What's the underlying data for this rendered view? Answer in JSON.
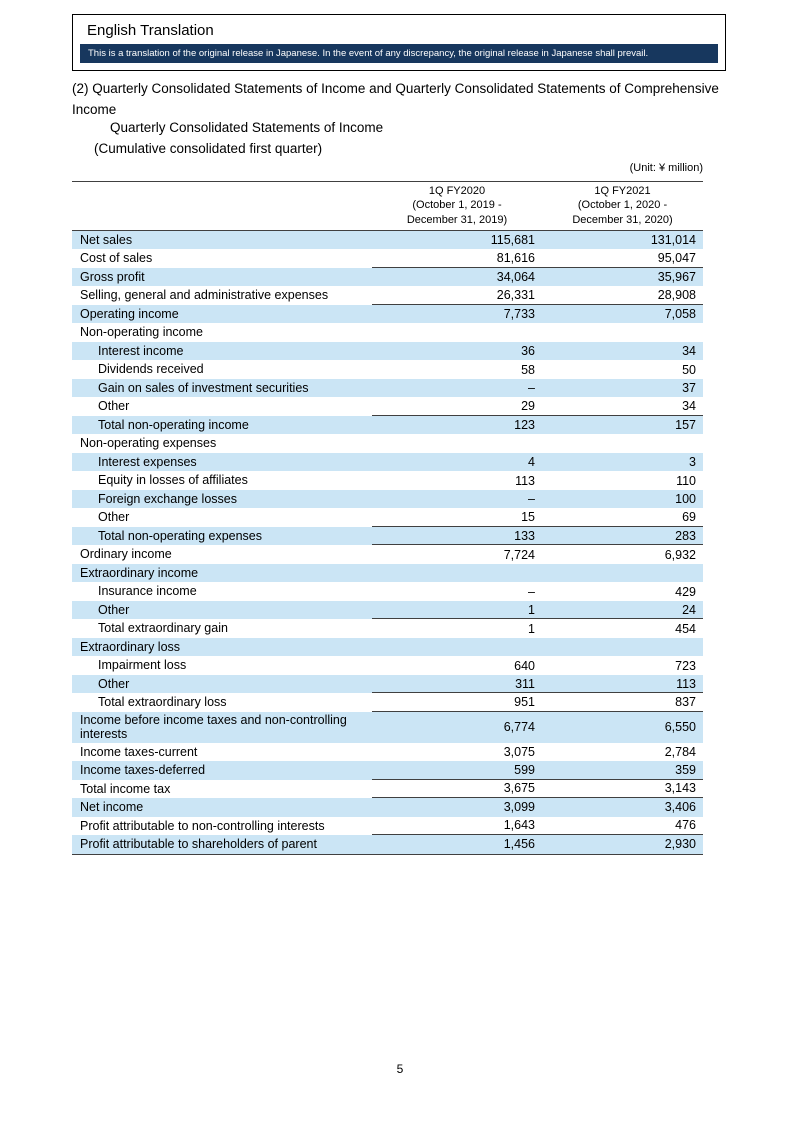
{
  "header_box": {
    "title": "English Translation",
    "note": "This is a translation of the original release in Japanese. In the event of any discrepancy, the original release in Japanese shall prevail."
  },
  "intro": {
    "section_heading": "(2) Quarterly Consolidated Statements of Income and Quarterly Consolidated Statements of Comprehensive Income",
    "statement_title": "Quarterly Consolidated Statements of Income",
    "statement_scope": "(Cumulative consolidated first quarter)",
    "unit_label": "(Unit: ¥ million)"
  },
  "table": {
    "columns": {
      "col1": {
        "line1": "1Q FY2020",
        "line2": "(October 1, 2019 -",
        "line3": "December 31, 2019)"
      },
      "col2": {
        "line1": "1Q FY2021",
        "line2": "(October 1, 2020 -",
        "line3": "December 31, 2020)"
      }
    },
    "rows": [
      {
        "label": "Net sales",
        "indent": 0,
        "v1": "115,681",
        "v2": "131,014",
        "sumline": false
      },
      {
        "label": "Cost of sales",
        "indent": 0,
        "v1": "81,616",
        "v2": "95,047",
        "sumline": true
      },
      {
        "label": "Gross profit",
        "indent": 0,
        "v1": "34,064",
        "v2": "35,967",
        "sumline": false
      },
      {
        "label": "Selling, general and administrative expenses",
        "indent": 0,
        "v1": "26,331",
        "v2": "28,908",
        "sumline": true
      },
      {
        "label": "Operating income",
        "indent": 0,
        "v1": "7,733",
        "v2": "7,058",
        "sumline": false
      },
      {
        "label": "Non-operating income",
        "indent": 0,
        "v1": "",
        "v2": "",
        "sumline": false
      },
      {
        "label": "Interest income",
        "indent": 1,
        "v1": "36",
        "v2": "34",
        "sumline": false
      },
      {
        "label": "Dividends received",
        "indent": 1,
        "v1": "58",
        "v2": "50",
        "sumline": false
      },
      {
        "label": "Gain on sales of investment securities",
        "indent": 1,
        "v1": "–",
        "v2": "37",
        "sumline": false
      },
      {
        "label": "Other",
        "indent": 1,
        "v1": "29",
        "v2": "34",
        "sumline": true
      },
      {
        "label": "Total non-operating income",
        "indent": 1,
        "v1": "123",
        "v2": "157",
        "sumline": false
      },
      {
        "label": "Non-operating expenses",
        "indent": 0,
        "v1": "",
        "v2": "",
        "sumline": false
      },
      {
        "label": "Interest expenses",
        "indent": 1,
        "v1": "4",
        "v2": "3",
        "sumline": false
      },
      {
        "label": "Equity in losses of affiliates",
        "indent": 1,
        "v1": "113",
        "v2": "110",
        "sumline": false
      },
      {
        "label": "Foreign exchange losses",
        "indent": 1,
        "v1": "–",
        "v2": "100",
        "sumline": false
      },
      {
        "label": "Other",
        "indent": 1,
        "v1": "15",
        "v2": "69",
        "sumline": true
      },
      {
        "label": "Total non-operating expenses",
        "indent": 1,
        "v1": "133",
        "v2": "283",
        "sumline": true
      },
      {
        "label": "Ordinary income",
        "indent": 0,
        "v1": "7,724",
        "v2": "6,932",
        "sumline": false
      },
      {
        "label": "Extraordinary income",
        "indent": 0,
        "v1": "",
        "v2": "",
        "sumline": false
      },
      {
        "label": "Insurance income",
        "indent": 1,
        "v1": "–",
        "v2": "429",
        "sumline": false
      },
      {
        "label": "Other",
        "indent": 1,
        "v1": "1",
        "v2": "24",
        "sumline": true
      },
      {
        "label": "Total extraordinary gain",
        "indent": 1,
        "v1": "1",
        "v2": "454",
        "sumline": false
      },
      {
        "label": "Extraordinary loss",
        "indent": 0,
        "v1": "",
        "v2": "",
        "sumline": false
      },
      {
        "label": "Impairment loss",
        "indent": 1,
        "v1": "640",
        "v2": "723",
        "sumline": false
      },
      {
        "label": "Other",
        "indent": 1,
        "v1": "311",
        "v2": "113",
        "sumline": true
      },
      {
        "label": "Total extraordinary loss",
        "indent": 1,
        "v1": "951",
        "v2": "837",
        "sumline": true
      },
      {
        "label": "Income before income taxes and non-controlling interests",
        "indent": 0,
        "v1": "6,774",
        "v2": "6,550",
        "sumline": false
      },
      {
        "label": "Income taxes-current",
        "indent": 0,
        "v1": "3,075",
        "v2": "2,784",
        "sumline": false
      },
      {
        "label": "Income taxes-deferred",
        "indent": 0,
        "v1": "599",
        "v2": "359",
        "sumline": true
      },
      {
        "label": "Total income tax",
        "indent": 0,
        "v1": "3,675",
        "v2": "3,143",
        "sumline": true
      },
      {
        "label": "Net income",
        "indent": 0,
        "v1": "3,099",
        "v2": "3,406",
        "sumline": false
      },
      {
        "label": "Profit attributable to non-controlling interests",
        "indent": 0,
        "v1": "1,643",
        "v2": "476",
        "sumline": true
      },
      {
        "label": "Profit attributable to shareholders of parent",
        "indent": 0,
        "v1": "1,456",
        "v2": "2,930",
        "sumline": false
      }
    ]
  },
  "footer": {
    "page_number": "5"
  },
  "colors": {
    "row_shade": "#cbe5f5",
    "note_bar": "#17375e"
  }
}
